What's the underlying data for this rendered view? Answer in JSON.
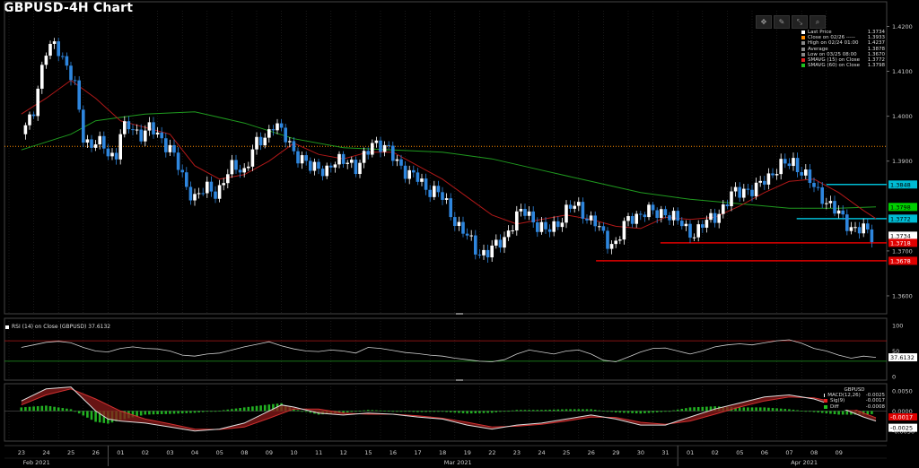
{
  "title": "GBPUSD-4H Chart",
  "toolbar": [
    "move-icon",
    "draw-icon",
    "crosshair-icon",
    "zoom-icon"
  ],
  "legend": [
    {
      "label": "Last Price",
      "value": "1.3734",
      "color": "#ffffff",
      "icon": "gear-icon"
    },
    {
      "label": "Close on 02/26 -----",
      "value": "1.3933",
      "color": "#ff8c00"
    },
    {
      "label": "High on 02/24 01:00",
      "value": "1.4237",
      "color": "#888888"
    },
    {
      "label": "Average",
      "value": "1.3878",
      "color": "#888888"
    },
    {
      "label": "Low on 03/25 08:00",
      "value": "1.3670",
      "color": "#888888"
    },
    {
      "label": "SMAVG (15)  on Close",
      "value": "1.3772",
      "color": "#e02020"
    },
    {
      "label": "SMAVG (60)  on Close",
      "value": "1.3798",
      "color": "#20c020"
    }
  ],
  "rsi_legend": "RSI (14)  on Close (GBPUSD) 37.6132",
  "macd_legend": {
    "title": "GBPUSD",
    "rows": [
      {
        "label": "MACD(12,26)",
        "value": "-0.0025",
        "color": "#ffffff"
      },
      {
        "label": "Sig(9)",
        "value": "-0.0017",
        "color": "#e02020"
      },
      {
        "label": "Diff",
        "value": "-0.0008",
        "color": "#20c020"
      }
    ]
  },
  "chart_data": {
    "type": "candlestick",
    "title": "GBPUSD-4H Chart",
    "price_axis": {
      "ticks": [
        "1.4200",
        "1.4100",
        "1.4000",
        "1.3900",
        "1.3700",
        "1.3600"
      ],
      "range": [
        1.356,
        1.4235
      ]
    },
    "price_labels": [
      {
        "text": "1.3848",
        "value": 1.3848,
        "bg": "#00bcd4",
        "fg": "#000000"
      },
      {
        "text": "1.3798",
        "value": 1.3798,
        "bg": "#00d000",
        "fg": "#000000"
      },
      {
        "text": "1.3772",
        "value": 1.3772,
        "bg": "#00bcd4",
        "fg": "#000000"
      },
      {
        "text": "1.3734",
        "value": 1.3734,
        "bg": "#ffffff",
        "fg": "#000000"
      },
      {
        "text": "1.3718",
        "value": 1.3718,
        "bg": "#e00000",
        "fg": "#ffffff"
      },
      {
        "text": "1.3678",
        "value": 1.3678,
        "bg": "#e00000",
        "fg": "#ffffff"
      }
    ],
    "horizontal_lines": [
      {
        "value": 1.3933,
        "color": "#ff8c00",
        "style": "dotted",
        "start_day": 0
      },
      {
        "value": 1.3848,
        "color": "#00bcd4",
        "style": "solid",
        "start_day": 32.5
      },
      {
        "value": 1.3772,
        "color": "#00bcd4",
        "style": "solid",
        "start_day": 31.3
      },
      {
        "value": 1.3718,
        "color": "#e00000",
        "style": "solid",
        "start_day": 25.8
      },
      {
        "value": 1.3678,
        "color": "#e00000",
        "style": "solid",
        "start_day": 23.2
      }
    ],
    "x_day_labels": [
      "23",
      "24",
      "25",
      "26",
      "01",
      "02",
      "03",
      "04",
      "05",
      "08",
      "09",
      "10",
      "11",
      "12",
      "15",
      "16",
      "17",
      "18",
      "19",
      "22",
      "23",
      "24",
      "25",
      "26",
      "29",
      "30",
      "31",
      "01",
      "02",
      "05",
      "06",
      "07",
      "08",
      "09"
    ],
    "x_month_labels": [
      {
        "text": "Feb 2021",
        "day": 0.5
      },
      {
        "text": "Mar 2021",
        "day": 17.5
      },
      {
        "text": "Apr 2021",
        "day": 31.5
      }
    ],
    "close_path": [
      [
        0,
        1.396
      ],
      [
        0.5,
        1.402
      ],
      [
        1,
        1.414
      ],
      [
        1.4,
        1.417
      ],
      [
        1.8,
        1.411
      ],
      [
        2.2,
        1.406
      ],
      [
        2.5,
        1.396
      ],
      [
        2.8,
        1.393
      ],
      [
        3,
        1.394
      ],
      [
        3.4,
        1.393
      ],
      [
        3.8,
        1.3905
      ],
      [
        4,
        1.396
      ],
      [
        4.4,
        1.398
      ],
      [
        4.8,
        1.396
      ],
      [
        5.2,
        1.397
      ],
      [
        5.5,
        1.396
      ],
      [
        6,
        1.393
      ],
      [
        6.3,
        1.389
      ],
      [
        6.6,
        1.385
      ],
      [
        7,
        1.382
      ],
      [
        7.3,
        1.383
      ],
      [
        7.6,
        1.384
      ],
      [
        7.9,
        1.383
      ],
      [
        8.2,
        1.386
      ],
      [
        8.6,
        1.389
      ],
      [
        9,
        1.388
      ],
      [
        9.4,
        1.393
      ],
      [
        9.8,
        1.395
      ],
      [
        10.2,
        1.399
      ],
      [
        10.5,
        1.396
      ],
      [
        10.8,
        1.394
      ],
      [
        11,
        1.3925
      ],
      [
        11.4,
        1.39
      ],
      [
        11.7,
        1.388
      ],
      [
        12,
        1.389
      ],
      [
        12.3,
        1.388
      ],
      [
        12.6,
        1.389
      ],
      [
        12.9,
        1.39
      ],
      [
        13.2,
        1.391
      ],
      [
        13.5,
        1.388
      ],
      [
        13.8,
        1.39
      ],
      [
        14.2,
        1.395
      ],
      [
        14.6,
        1.393
      ],
      [
        15,
        1.391
      ],
      [
        15.3,
        1.3895
      ],
      [
        15.6,
        1.387
      ],
      [
        16,
        1.386
      ],
      [
        16.4,
        1.384
      ],
      [
        16.8,
        1.383
      ],
      [
        17.2,
        1.38
      ],
      [
        17.6,
        1.376
      ],
      [
        18,
        1.373
      ],
      [
        18.4,
        1.37
      ],
      [
        18.8,
        1.3695
      ],
      [
        19.2,
        1.371
      ],
      [
        19.6,
        1.374
      ],
      [
        20,
        1.3775
      ],
      [
        20.4,
        1.379
      ],
      [
        20.8,
        1.376
      ],
      [
        21.2,
        1.374
      ],
      [
        21.6,
        1.376
      ],
      [
        22,
        1.379
      ],
      [
        22.4,
        1.38
      ],
      [
        22.8,
        1.378
      ],
      [
        23.2,
        1.376
      ],
      [
        23.6,
        1.372
      ],
      [
        24,
        1.372
      ],
      [
        24.4,
        1.376
      ],
      [
        24.8,
        1.378
      ],
      [
        25.2,
        1.379
      ],
      [
        25.6,
        1.378
      ],
      [
        26,
        1.379
      ],
      [
        26.4,
        1.377
      ],
      [
        26.8,
        1.375
      ],
      [
        27.2,
        1.374
      ],
      [
        27.6,
        1.376
      ],
      [
        28,
        1.378
      ],
      [
        28.4,
        1.38
      ],
      [
        28.8,
        1.383
      ],
      [
        29.2,
        1.384
      ],
      [
        29.6,
        1.383
      ],
      [
        30,
        1.386
      ],
      [
        30.4,
        1.388
      ],
      [
        30.8,
        1.389
      ],
      [
        31.2,
        1.39
      ],
      [
        31.6,
        1.387
      ],
      [
        32,
        1.384
      ],
      [
        32.4,
        1.382
      ],
      [
        32.8,
        1.379
      ],
      [
        33.2,
        1.377
      ],
      [
        33.6,
        1.375
      ],
      [
        34,
        1.3745
      ],
      [
        34.4,
        1.3734
      ]
    ],
    "sma15": [
      [
        0,
        1.4005
      ],
      [
        1,
        1.404
      ],
      [
        2,
        1.408
      ],
      [
        3,
        1.404
      ],
      [
        4,
        1.399
      ],
      [
        5,
        1.3975
      ],
      [
        6,
        1.396
      ],
      [
        7,
        1.389
      ],
      [
        8,
        1.386
      ],
      [
        9,
        1.387
      ],
      [
        10,
        1.39
      ],
      [
        11,
        1.394
      ],
      [
        12,
        1.3915
      ],
      [
        13,
        1.3905
      ],
      [
        14,
        1.392
      ],
      [
        15,
        1.392
      ],
      [
        16,
        1.389
      ],
      [
        17,
        1.386
      ],
      [
        18,
        1.382
      ],
      [
        19,
        1.378
      ],
      [
        20,
        1.376
      ],
      [
        21,
        1.377
      ],
      [
        22,
        1.378
      ],
      [
        23,
        1.377
      ],
      [
        24,
        1.3755
      ],
      [
        25,
        1.375
      ],
      [
        26,
        1.3775
      ],
      [
        27,
        1.377
      ],
      [
        28,
        1.3775
      ],
      [
        29,
        1.38
      ],
      [
        30,
        1.383
      ],
      [
        31,
        1.3855
      ],
      [
        32,
        1.386
      ],
      [
        33,
        1.383
      ],
      [
        34,
        1.379
      ],
      [
        34.5,
        1.3772
      ]
    ],
    "sma60": [
      [
        0,
        1.3925
      ],
      [
        2,
        1.396
      ],
      [
        3,
        1.399
      ],
      [
        5,
        1.4005
      ],
      [
        7,
        1.401
      ],
      [
        9,
        1.3985
      ],
      [
        11,
        1.395
      ],
      [
        13,
        1.393
      ],
      [
        15,
        1.3925
      ],
      [
        17,
        1.392
      ],
      [
        19,
        1.3905
      ],
      [
        21,
        1.388
      ],
      [
        23,
        1.3855
      ],
      [
        25,
        1.383
      ],
      [
        27,
        1.3815
      ],
      [
        29,
        1.3805
      ],
      [
        31,
        1.3795
      ],
      [
        33,
        1.3795
      ],
      [
        34.5,
        1.3798
      ]
    ],
    "rsi": {
      "value": 37.6132,
      "label_text": "37.6132",
      "levels": [
        70,
        30
      ],
      "ticks": [
        "100",
        "50",
        "0"
      ],
      "series": [
        [
          0,
          57
        ],
        [
          0.5,
          62
        ],
        [
          1,
          67
        ],
        [
          1.5,
          69
        ],
        [
          2,
          66
        ],
        [
          2.5,
          57
        ],
        [
          3,
          50
        ],
        [
          3.5,
          48
        ],
        [
          4,
          55
        ],
        [
          4.5,
          58
        ],
        [
          5,
          55
        ],
        [
          5.5,
          54
        ],
        [
          6,
          50
        ],
        [
          6.5,
          42
        ],
        [
          7,
          40
        ],
        [
          7.5,
          44
        ],
        [
          8,
          46
        ],
        [
          8.5,
          52
        ],
        [
          9,
          58
        ],
        [
          9.5,
          63
        ],
        [
          10,
          68
        ],
        [
          10.5,
          60
        ],
        [
          11,
          54
        ],
        [
          11.5,
          50
        ],
        [
          12,
          49
        ],
        [
          12.5,
          52
        ],
        [
          13,
          50
        ],
        [
          13.5,
          46
        ],
        [
          14,
          57
        ],
        [
          14.5,
          55
        ],
        [
          15,
          51
        ],
        [
          15.5,
          47
        ],
        [
          16,
          45
        ],
        [
          16.5,
          42
        ],
        [
          17,
          40
        ],
        [
          17.5,
          36
        ],
        [
          18,
          33
        ],
        [
          18.5,
          30
        ],
        [
          19,
          29
        ],
        [
          19.5,
          33
        ],
        [
          20,
          44
        ],
        [
          20.5,
          52
        ],
        [
          21,
          48
        ],
        [
          21.5,
          44
        ],
        [
          22,
          50
        ],
        [
          22.5,
          52
        ],
        [
          23,
          44
        ],
        [
          23.5,
          32
        ],
        [
          24,
          29
        ],
        [
          24.5,
          38
        ],
        [
          25,
          48
        ],
        [
          25.5,
          55
        ],
        [
          26,
          56
        ],
        [
          26.5,
          50
        ],
        [
          27,
          44
        ],
        [
          27.5,
          50
        ],
        [
          28,
          58
        ],
        [
          28.5,
          62
        ],
        [
          29,
          64
        ],
        [
          29.5,
          62
        ],
        [
          30,
          66
        ],
        [
          30.5,
          70
        ],
        [
          31,
          72
        ],
        [
          31.5,
          65
        ],
        [
          32,
          55
        ],
        [
          32.5,
          50
        ],
        [
          33,
          42
        ],
        [
          33.5,
          36
        ],
        [
          34,
          40
        ],
        [
          34.5,
          37.6
        ]
      ]
    },
    "macd": {
      "ticks": [
        "0.0050",
        "0.0000",
        "-0.0050"
      ],
      "labels": [
        "-0.0017",
        "-0.0025"
      ],
      "range": [
        -0.0075,
        0.0068
      ],
      "macd_series": [
        [
          0,
          0.0025
        ],
        [
          1,
          0.0055
        ],
        [
          2,
          0.006
        ],
        [
          2.5,
          0.003
        ],
        [
          3,
          0.0
        ],
        [
          3.5,
          -0.002
        ],
        [
          4,
          -0.0025
        ],
        [
          5,
          -0.003
        ],
        [
          6,
          -0.004
        ],
        [
          7,
          -0.005
        ],
        [
          8,
          -0.0045
        ],
        [
          9,
          -0.003
        ],
        [
          10,
          0.0
        ],
        [
          10.5,
          0.0015
        ],
        [
          11,
          0.001
        ],
        [
          12,
          -0.0005
        ],
        [
          13,
          -0.001
        ],
        [
          14,
          -0.0005
        ],
        [
          15,
          -0.0008
        ],
        [
          16,
          -0.0015
        ],
        [
          17,
          -0.002
        ],
        [
          18,
          -0.0035
        ],
        [
          19,
          -0.0045
        ],
        [
          20,
          -0.0035
        ],
        [
          21,
          -0.003
        ],
        [
          22,
          -0.002
        ],
        [
          23,
          -0.001
        ],
        [
          24,
          -0.002
        ],
        [
          25,
          -0.0035
        ],
        [
          26,
          -0.0035
        ],
        [
          27,
          -0.0015
        ],
        [
          28,
          0.0005
        ],
        [
          29,
          0.002
        ],
        [
          30,
          0.0035
        ],
        [
          31,
          0.004
        ],
        [
          32,
          0.003
        ],
        [
          33,
          0.001
        ],
        [
          34,
          -0.0015
        ],
        [
          34.5,
          -0.0025
        ]
      ],
      "signal_series": [
        [
          0,
          0.0015
        ],
        [
          1,
          0.004
        ],
        [
          2,
          0.0055
        ],
        [
          3,
          0.003
        ],
        [
          4,
          0.0
        ],
        [
          5,
          -0.002
        ],
        [
          6,
          -0.0032
        ],
        [
          7,
          -0.0045
        ],
        [
          8,
          -0.0046
        ],
        [
          9,
          -0.004
        ],
        [
          10,
          -0.0018
        ],
        [
          11,
          0.0005
        ],
        [
          12,
          0.0005
        ],
        [
          13,
          -0.0005
        ],
        [
          14,
          -0.0008
        ],
        [
          15,
          -0.0008
        ],
        [
          16,
          -0.0012
        ],
        [
          17,
          -0.0018
        ],
        [
          18,
          -0.0028
        ],
        [
          19,
          -0.004
        ],
        [
          20,
          -0.0038
        ],
        [
          21,
          -0.0033
        ],
        [
          22,
          -0.0025
        ],
        [
          23,
          -0.0015
        ],
        [
          24,
          -0.0016
        ],
        [
          25,
          -0.0028
        ],
        [
          26,
          -0.0033
        ],
        [
          27,
          -0.0025
        ],
        [
          28,
          -0.0008
        ],
        [
          29,
          0.001
        ],
        [
          30,
          0.0025
        ],
        [
          31,
          0.0035
        ],
        [
          32,
          0.0033
        ],
        [
          33,
          0.002
        ],
        [
          34,
          -0.0005
        ],
        [
          34.5,
          -0.0017
        ]
      ]
    }
  }
}
